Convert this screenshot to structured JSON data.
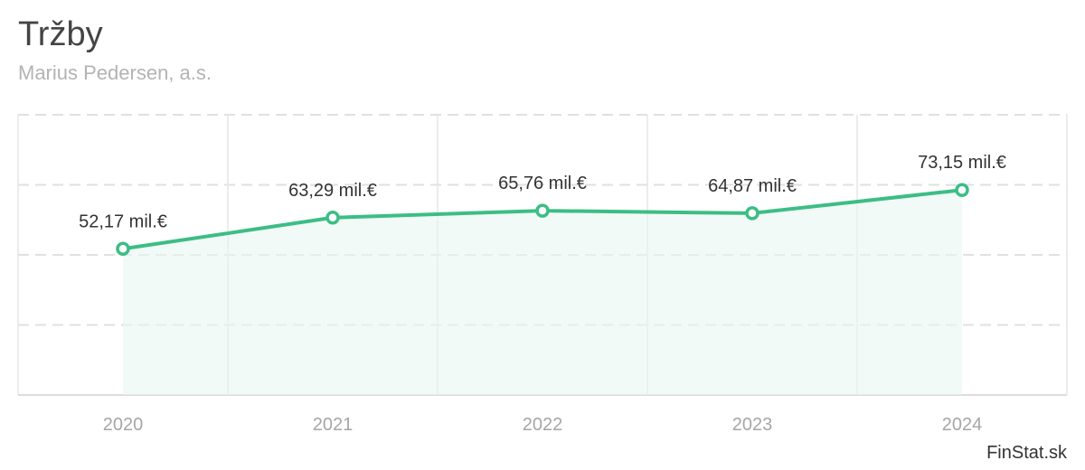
{
  "header": {
    "title": "Tržby",
    "subtitle": "Marius Pedersen, a.s."
  },
  "credit": "FinStat.sk",
  "colors": {
    "line": "#3dbd85",
    "area": "#e8f7f1",
    "title": "#444444",
    "subtitle": "#b3b3b3",
    "tick": "#a6a6a6"
  },
  "chart_data": {
    "type": "area",
    "title": "Tržby",
    "subtitle": "Marius Pedersen, a.s.",
    "categories": [
      "2020",
      "2021",
      "2022",
      "2023",
      "2024"
    ],
    "series": [
      {
        "values": [
          52.17,
          63.29,
          65.76,
          64.87,
          73.15
        ],
        "labels": [
          "52,17 mil.€",
          "63,29 mil.€",
          "65,76 mil.€",
          "64,87 mil.€",
          "73,15 mil.€"
        ]
      }
    ],
    "unit": "mil.€",
    "ylim": [
      0,
      100
    ],
    "grid": true,
    "legend": "none"
  }
}
